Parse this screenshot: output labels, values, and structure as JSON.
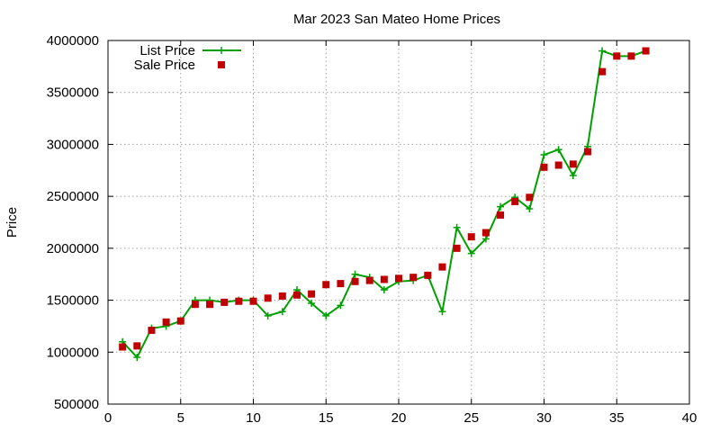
{
  "chart_data": {
    "type": "line",
    "title": "Mar 2023 San Mateo Home Prices",
    "xlabel": "",
    "ylabel": "Price",
    "xlim": [
      0,
      40
    ],
    "ylim": [
      500000,
      4000000
    ],
    "xticks": [
      0,
      5,
      10,
      15,
      20,
      25,
      30,
      35,
      40
    ],
    "yticks": [
      500000,
      1000000,
      1500000,
      2000000,
      2500000,
      3000000,
      3500000,
      4000000
    ],
    "grid": true,
    "legend_position": "top-left",
    "series": [
      {
        "name": "List Price",
        "style": "line-plus",
        "color": "#00a000",
        "x": [
          1,
          2,
          3,
          4,
          5,
          6,
          7,
          8,
          9,
          10,
          11,
          12,
          13,
          14,
          15,
          16,
          17,
          18,
          19,
          20,
          21,
          22,
          23,
          24,
          25,
          26,
          27,
          28,
          29,
          30,
          31,
          32,
          33,
          34,
          35,
          36,
          37
        ],
        "y": [
          1100000,
          950000,
          1230000,
          1250000,
          1300000,
          1500000,
          1500000,
          1480000,
          1500000,
          1500000,
          1350000,
          1390000,
          1600000,
          1470000,
          1350000,
          1450000,
          1750000,
          1720000,
          1600000,
          1680000,
          1690000,
          1740000,
          1390000,
          2200000,
          1950000,
          2090000,
          2400000,
          2490000,
          2380000,
          2900000,
          2950000,
          2700000,
          2980000,
          3900000,
          3850000,
          3850000,
          3900000
        ]
      },
      {
        "name": "Sale Price",
        "style": "square",
        "color": "#c00000",
        "x": [
          1,
          2,
          3,
          4,
          5,
          6,
          7,
          8,
          9,
          10,
          11,
          12,
          13,
          14,
          15,
          16,
          17,
          18,
          19,
          20,
          21,
          22,
          23,
          24,
          25,
          26,
          27,
          28,
          29,
          30,
          31,
          32,
          33,
          34,
          35,
          36,
          37
        ],
        "y": [
          1050000,
          1060000,
          1210000,
          1290000,
          1300000,
          1460000,
          1460000,
          1480000,
          1490000,
          1490000,
          1520000,
          1540000,
          1550000,
          1560000,
          1650000,
          1660000,
          1680000,
          1690000,
          1700000,
          1710000,
          1720000,
          1740000,
          1820000,
          2000000,
          2110000,
          2150000,
          2320000,
          2450000,
          2490000,
          2780000,
          2800000,
          2810000,
          2930000,
          3700000,
          3850000,
          3850000,
          3900000
        ]
      }
    ]
  }
}
